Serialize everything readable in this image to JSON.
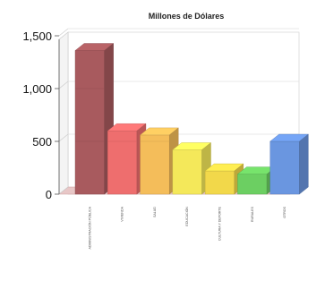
{
  "chart_data": {
    "type": "bar",
    "title": "Millones de Dólares",
    "xlabel": "",
    "ylabel": "",
    "ylim": [
      0,
      1500
    ],
    "yticks": [
      "0",
      "500",
      "1,000",
      "1,500"
    ],
    "tick_values": [
      0,
      500,
      1000,
      1500
    ],
    "grid": true,
    "style": "3d",
    "categories": [
      "ADMINISTRACIÓN PÚBLICA",
      "VIVIENDA",
      "SALUD",
      "EDUCACIÓN",
      "CULTURA Y DEPORTE",
      "RURALES",
      "OTROS"
    ],
    "values": [
      1360,
      600,
      560,
      420,
      220,
      190,
      500
    ],
    "colors": [
      "#a85a5e",
      "#ee6e6e",
      "#f4bd5a",
      "#f4e85a",
      "#f2d84a",
      "#6ccf62",
      "#6a96e0"
    ]
  }
}
